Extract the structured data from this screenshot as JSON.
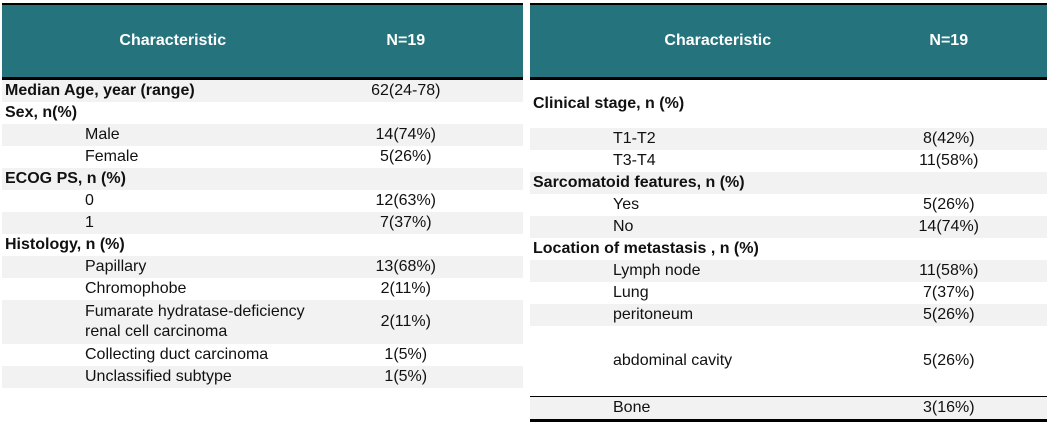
{
  "theme": {
    "header_bg": "#25737c",
    "header_text": "#ffffff",
    "stripe_color": "#f2f2f2",
    "border_color": "#000000",
    "text_color": "#111111"
  },
  "tables": [
    {
      "name": "patient-demographics",
      "stripe_offset": 0,
      "bottom_border": false,
      "header": {
        "characteristic": "Characteristic",
        "n": "N=19"
      },
      "rows": [
        {
          "label": "Median Age, year (range)",
          "value": "62(24-78)",
          "type": "group"
        },
        {
          "label": "Sex, n(%)",
          "value": "",
          "type": "group"
        },
        {
          "label": "Male",
          "value": "14(74%)",
          "type": "item"
        },
        {
          "label": "Female",
          "value": "5(26%)",
          "type": "item"
        },
        {
          "label": "ECOG PS, n (%)",
          "value": "",
          "type": "group"
        },
        {
          "label": "0",
          "value": "12(63%)",
          "type": "item"
        },
        {
          "label": "1",
          "value": "7(37%)",
          "type": "item"
        },
        {
          "label": "Histology, n (%)",
          "value": "",
          "type": "group"
        },
        {
          "label": "Papillary",
          "value": "13(68%)",
          "type": "item"
        },
        {
          "label": "Chromophobe",
          "value": "2(11%)",
          "type": "item"
        },
        {
          "label": "Fumarate hydratase-deficiency\nrenal cell carcinoma",
          "value": "2(11%)",
          "type": "item",
          "size": "double"
        },
        {
          "label": "Collecting duct carcinoma",
          "value": "1(5%)",
          "type": "item"
        },
        {
          "label": "Unclassified subtype",
          "value": "1(5%)",
          "type": "item"
        }
      ]
    },
    {
      "name": "disease-characteristics",
      "stripe_offset": 1,
      "bottom_border": true,
      "header": {
        "characteristic": "Characteristic",
        "n": "N=19"
      },
      "rows": [
        {
          "label": "Clinical stage, n (%)",
          "value": "",
          "type": "group",
          "size": "tall"
        },
        {
          "label": "T1-T2",
          "value": "8(42%)",
          "type": "item"
        },
        {
          "label": "T3-T4",
          "value": "11(58%)",
          "type": "item"
        },
        {
          "label": "Sarcomatoid features, n (%)",
          "value": "",
          "type": "group"
        },
        {
          "label": "Yes",
          "value": "5(26%)",
          "type": "item"
        },
        {
          "label": "No",
          "value": "14(74%)",
          "type": "item"
        },
        {
          "label": "Location of metastasis , n (%)",
          "value": "",
          "type": "group"
        },
        {
          "label": "Lymph node",
          "value": "11(58%)",
          "type": "item"
        },
        {
          "label": "Lung",
          "value": "7(37%)",
          "type": "item"
        },
        {
          "label": "peritoneum",
          "value": "5(26%)",
          "type": "item"
        },
        {
          "label": "abdominal cavity",
          "value": "5(26%)",
          "type": "item",
          "size": "xtall"
        },
        {
          "label": "Bone",
          "value": "3(16%)",
          "type": "item",
          "topline": true
        }
      ]
    }
  ]
}
